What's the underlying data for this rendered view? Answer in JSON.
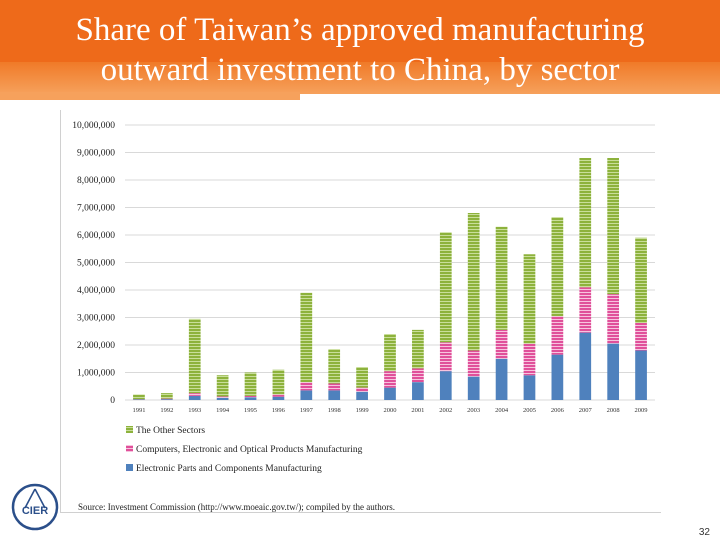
{
  "slide": {
    "title_line1": "Share of Taiwan’s approved manufacturing",
    "title_line2": "outward investment to China, by sector",
    "source": "Source: Investment Commission (http://www.moeaic.gov.tw/); compiled by the authors.",
    "logo_text": "CIER",
    "page_number": "32"
  },
  "colors": {
    "title_bg": "#ee6a1a",
    "electronic_parts": "#4f81bd",
    "computers": "#e0509a",
    "other_sectors": "#8db23c"
  },
  "chart_data": {
    "type": "bar",
    "stacked": true,
    "title": "",
    "xlabel": "",
    "ylabel": "",
    "ylim": [
      0,
      10000000
    ],
    "yticks": [
      "0",
      "1,000,000",
      "2,000,000",
      "3,000,000",
      "4,000,000",
      "5,000,000",
      "6,000,000",
      "7,000,000",
      "8,000,000",
      "9,000,000",
      "10,000,000"
    ],
    "ytick_values": [
      0,
      1000000,
      2000000,
      3000000,
      4000000,
      5000000,
      6000000,
      7000000,
      8000000,
      9000000,
      10000000
    ],
    "grid": true,
    "legend_position": "bottom",
    "categories": [
      "1991",
      "1992",
      "1993",
      "1994",
      "1995",
      "1996",
      "1997",
      "1998",
      "1999",
      "2000",
      "2001",
      "2002",
      "2003",
      "2004",
      "2005",
      "2006",
      "2007",
      "2008",
      "2009"
    ],
    "series": [
      {
        "name": "Electronic Parts and Components Manufacturing",
        "color": "#4f81bd",
        "values": [
          20000,
          30000,
          150000,
          80000,
          100000,
          120000,
          350000,
          350000,
          300000,
          450000,
          650000,
          1050000,
          850000,
          1500000,
          900000,
          1650000,
          2450000,
          2050000,
          1800000
        ]
      },
      {
        "name": "Computers, Electronic and Optical Products Manufacturing",
        "color": "#e0509a",
        "values": [
          10000,
          20000,
          100000,
          50000,
          50000,
          80000,
          300000,
          250000,
          150000,
          600000,
          500000,
          1050000,
          950000,
          1050000,
          1150000,
          1400000,
          1650000,
          1800000,
          1000000
        ]
      },
      {
        "name": "The Other Sectors",
        "color": "#8db23c",
        "values": [
          170000,
          200000,
          2700000,
          770000,
          850000,
          900000,
          3250000,
          1250000,
          750000,
          1350000,
          1400000,
          4000000,
          5000000,
          3750000,
          3250000,
          3600000,
          4700000,
          4950000,
          3100000
        ]
      }
    ],
    "legend_order": [
      "The Other Sectors",
      "Computers, Electronic and Optical Products Manufacturing",
      "Electronic Parts and Components Manufacturing"
    ]
  }
}
